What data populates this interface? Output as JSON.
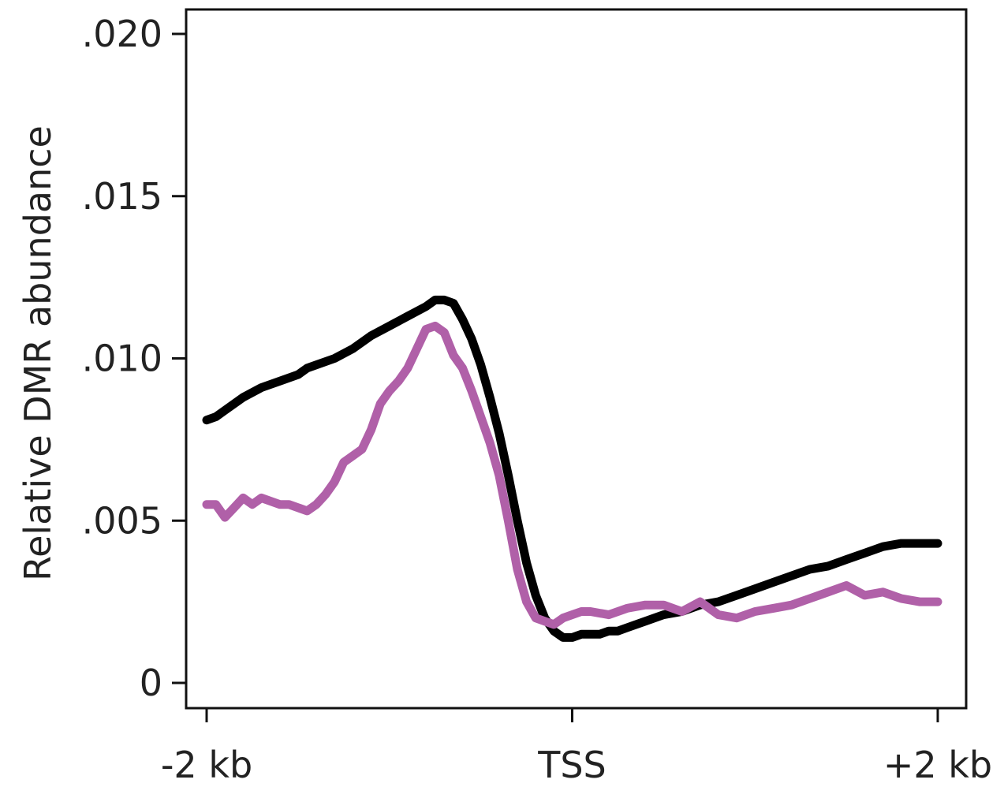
{
  "chart_data": {
    "type": "line",
    "title": "",
    "xlabel": "",
    "ylabel": "Relative DMR abundance",
    "xlim": [
      -2,
      2
    ],
    "ylim": [
      0,
      0.02
    ],
    "grid": false,
    "legend": "none",
    "x_ticks": [
      {
        "value": -2,
        "label": "-2 kb"
      },
      {
        "value": 0,
        "label": "TSS"
      },
      {
        "value": 2,
        "label": "+2 kb"
      }
    ],
    "y_ticks": [
      {
        "value": 0,
        "label": "0"
      },
      {
        "value": 0.005,
        "label": ".005"
      },
      {
        "value": 0.01,
        "label": ".010"
      },
      {
        "value": 0.015,
        "label": ".015"
      },
      {
        "value": 0.02,
        "label": ".020"
      }
    ],
    "series": [
      {
        "color": "#000000",
        "x": [
          -2.0,
          -1.95,
          -1.9,
          -1.8,
          -1.7,
          -1.6,
          -1.5,
          -1.45,
          -1.4,
          -1.3,
          -1.2,
          -1.1,
          -1.0,
          -0.9,
          -0.8,
          -0.75,
          -0.7,
          -0.65,
          -0.6,
          -0.55,
          -0.5,
          -0.45,
          -0.4,
          -0.35,
          -0.3,
          -0.25,
          -0.2,
          -0.15,
          -0.1,
          -0.05,
          0.0,
          0.05,
          0.1,
          0.15,
          0.2,
          0.25,
          0.3,
          0.4,
          0.5,
          0.6,
          0.7,
          0.8,
          0.9,
          1.0,
          1.1,
          1.2,
          1.3,
          1.4,
          1.5,
          1.6,
          1.7,
          1.8,
          1.9,
          1.95,
          2.0
        ],
        "y": [
          0.0081,
          0.0082,
          0.0084,
          0.0088,
          0.0091,
          0.0093,
          0.0095,
          0.0097,
          0.0098,
          0.01,
          0.0103,
          0.0107,
          0.011,
          0.0113,
          0.0116,
          0.0118,
          0.0118,
          0.0117,
          0.0112,
          0.0106,
          0.0098,
          0.0088,
          0.0077,
          0.0064,
          0.005,
          0.0037,
          0.0027,
          0.002,
          0.0016,
          0.0014,
          0.0014,
          0.0015,
          0.0015,
          0.0015,
          0.0016,
          0.0016,
          0.0017,
          0.0019,
          0.0021,
          0.0022,
          0.0024,
          0.0025,
          0.0027,
          0.0029,
          0.0031,
          0.0033,
          0.0035,
          0.0036,
          0.0038,
          0.004,
          0.0042,
          0.0043,
          0.0043,
          0.0043,
          0.0043
        ]
      },
      {
        "color": "#b060a8",
        "x": [
          -2.0,
          -1.95,
          -1.9,
          -1.85,
          -1.8,
          -1.75,
          -1.7,
          -1.65,
          -1.6,
          -1.55,
          -1.5,
          -1.45,
          -1.4,
          -1.35,
          -1.3,
          -1.25,
          -1.2,
          -1.15,
          -1.1,
          -1.05,
          -1.0,
          -0.95,
          -0.9,
          -0.85,
          -0.8,
          -0.75,
          -0.7,
          -0.65,
          -0.6,
          -0.55,
          -0.5,
          -0.45,
          -0.4,
          -0.35,
          -0.3,
          -0.25,
          -0.2,
          -0.15,
          -0.1,
          -0.05,
          0.0,
          0.05,
          0.1,
          0.2,
          0.3,
          0.4,
          0.5,
          0.6,
          0.7,
          0.8,
          0.9,
          1.0,
          1.1,
          1.2,
          1.3,
          1.4,
          1.5,
          1.6,
          1.7,
          1.8,
          1.9,
          1.95,
          2.0
        ],
        "y": [
          0.0055,
          0.0055,
          0.0051,
          0.0054,
          0.0057,
          0.0055,
          0.0057,
          0.0056,
          0.0055,
          0.0055,
          0.0054,
          0.0053,
          0.0055,
          0.0058,
          0.0062,
          0.0068,
          0.007,
          0.0072,
          0.0078,
          0.0086,
          0.009,
          0.0093,
          0.0097,
          0.0103,
          0.0109,
          0.011,
          0.0108,
          0.0101,
          0.0097,
          0.009,
          0.0082,
          0.0074,
          0.0064,
          0.005,
          0.0035,
          0.0025,
          0.002,
          0.0019,
          0.0018,
          0.002,
          0.0021,
          0.0022,
          0.0022,
          0.0021,
          0.0023,
          0.0024,
          0.0024,
          0.0022,
          0.0025,
          0.0021,
          0.002,
          0.0022,
          0.0023,
          0.0024,
          0.0026,
          0.0028,
          0.003,
          0.0027,
          0.0028,
          0.0026,
          0.0025,
          0.0025,
          0.0025
        ]
      }
    ]
  }
}
